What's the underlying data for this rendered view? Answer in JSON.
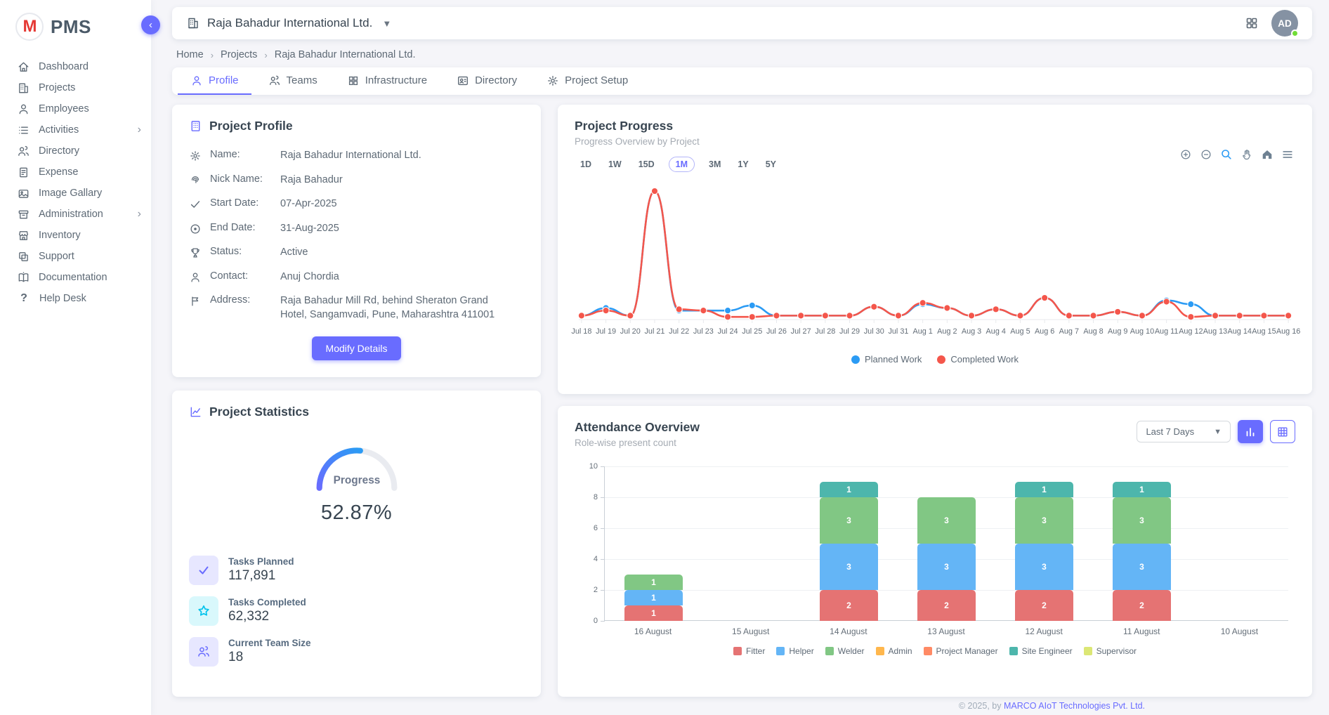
{
  "theme": {
    "accent": "#696cff",
    "online": "#71dd37",
    "logo_red": "#e53935",
    "avatar_bg": "#8592a3"
  },
  "app": {
    "name": "PMS",
    "logo_letter": "M"
  },
  "sidebar": {
    "items": [
      {
        "label": "Dashboard",
        "icon": "home-icon"
      },
      {
        "label": "Projects",
        "icon": "building-icon"
      },
      {
        "label": "Employees",
        "icon": "user-icon"
      },
      {
        "label": "Activities",
        "icon": "list-icon",
        "expandable": true
      },
      {
        "label": "Directory",
        "icon": "users-icon"
      },
      {
        "label": "Expense",
        "icon": "receipt-icon"
      },
      {
        "label": "Image Gallary",
        "icon": "image-icon"
      },
      {
        "label": "Administration",
        "icon": "archive-icon",
        "expandable": true
      },
      {
        "label": "Inventory",
        "icon": "store-icon"
      },
      {
        "label": "Support",
        "icon": "copy-icon"
      },
      {
        "label": "Documentation",
        "icon": "book-icon"
      },
      {
        "label": "Help Desk",
        "icon": "help-icon"
      }
    ],
    "chevron": "›"
  },
  "header": {
    "company": "Raja Bahadur International Ltd.",
    "avatar_initials": "AD"
  },
  "breadcrumb": [
    "Home",
    "Projects",
    "Raja Bahadur International Ltd."
  ],
  "tabs": [
    {
      "label": "Profile",
      "active": true
    },
    {
      "label": "Teams"
    },
    {
      "label": "Infrastructure"
    },
    {
      "label": "Directory"
    },
    {
      "label": "Project Setup"
    }
  ],
  "profile_card": {
    "title": "Project Profile",
    "fields": [
      {
        "label": "Name:",
        "value": "Raja Bahadur International Ltd."
      },
      {
        "label": "Nick Name:",
        "value": "Raja Bahadur"
      },
      {
        "label": "Start Date:",
        "value": "07-Apr-2025"
      },
      {
        "label": "End Date:",
        "value": "31-Aug-2025"
      },
      {
        "label": "Status:",
        "value": "Active"
      },
      {
        "label": "Contact:",
        "value": "Anuj Chordia"
      },
      {
        "label": "Address:",
        "value": "Raja Bahadur Mill Rd, behind Sheraton Grand Hotel, Sangamvadi, Pune, Maharashtra 411001"
      }
    ],
    "button_label": "Modify Details"
  },
  "stats_card": {
    "title": "Project Statistics",
    "gauge_label": "Progress",
    "gauge_value": "52.87%",
    "gauge_percent": 52.87,
    "items": [
      {
        "label": "Tasks Planned",
        "value": "117,891"
      },
      {
        "label": "Tasks Completed",
        "value": "62,332"
      },
      {
        "label": "Current Team Size",
        "value": "18"
      }
    ]
  },
  "progress_card": {
    "title": "Project Progress",
    "subtitle": "Progress Overview by Project",
    "ranges": [
      "1D",
      "1W",
      "15D",
      "1M",
      "3M",
      "1Y",
      "5Y"
    ],
    "active_range": "1M"
  },
  "attendance_card": {
    "title": "Attendance Overview",
    "subtitle": "Role-wise present count",
    "filter_value": "Last 7 Days"
  },
  "footer": {
    "prefix": "© 2025, by ",
    "link": "MARCO AIoT Technologies Pvt. Ltd."
  },
  "chart_data": [
    {
      "type": "line",
      "title": "Project Progress",
      "x": [
        "Jul 18",
        "Jul 19",
        "Jul 20",
        "Jul 21",
        "Jul 22",
        "Jul 23",
        "Jul 24",
        "Jul 25",
        "Jul 26",
        "Jul 27",
        "Jul 28",
        "Jul 29",
        "Jul 30",
        "Jul 31",
        "Aug 1",
        "Aug 2",
        "Aug 3",
        "Aug 4",
        "Aug 5",
        "Aug 6",
        "Aug 7",
        "Aug 8",
        "Aug 9",
        "Aug 10",
        "Aug 11",
        "Aug 12",
        "Aug 13",
        "Aug 14",
        "Aug 15",
        "Aug 16"
      ],
      "series": [
        {
          "name": "Planned Work",
          "color": "#2b9bf4",
          "values": [
            2,
            8,
            2,
            100,
            6,
            6,
            6,
            10,
            2,
            2,
            2,
            2,
            9,
            2,
            11,
            8,
            2,
            7,
            2,
            16,
            2,
            2,
            5,
            2,
            14,
            11,
            2,
            2,
            2,
            2
          ]
        },
        {
          "name": "Completed Work",
          "color": "#f4564b",
          "values": [
            2,
            6,
            2,
            100,
            7,
            6,
            1,
            1,
            2,
            2,
            2,
            2,
            9,
            2,
            12,
            8,
            2,
            7,
            2,
            16,
            2,
            2,
            5,
            2,
            13,
            1,
            2,
            2,
            2,
            2
          ]
        }
      ],
      "ylim": [
        0,
        105
      ],
      "grid": false,
      "legend_position": "bottom"
    },
    {
      "type": "bar",
      "stacked": true,
      "title": "Attendance Overview",
      "categories": [
        "16 August",
        "15 August",
        "14 August",
        "13 August",
        "12 August",
        "11 August",
        "10 August"
      ],
      "series": [
        {
          "name": "Fitter",
          "color": "#e57373",
          "values": [
            1,
            0,
            2,
            2,
            2,
            2,
            0
          ]
        },
        {
          "name": "Helper",
          "color": "#64b5f6",
          "values": [
            1,
            0,
            3,
            3,
            3,
            3,
            0
          ]
        },
        {
          "name": "Welder",
          "color": "#81c784",
          "values": [
            1,
            0,
            3,
            3,
            3,
            3,
            0
          ]
        },
        {
          "name": "Admin",
          "color": "#ffb74d",
          "values": [
            0,
            0,
            0,
            0,
            0,
            0,
            0
          ]
        },
        {
          "name": "Project Manager",
          "color": "#ff8a65",
          "values": [
            0,
            0,
            0,
            0,
            0,
            0,
            0
          ]
        },
        {
          "name": "Site Engineer",
          "color": "#4db6ac",
          "values": [
            0,
            0,
            1,
            0,
            1,
            1,
            0
          ]
        },
        {
          "name": "Supervisor",
          "color": "#dce775",
          "values": [
            0,
            0,
            0,
            0,
            0,
            0,
            0
          ]
        }
      ],
      "ylim": [
        0,
        10
      ],
      "yticks": [
        0,
        2,
        4,
        6,
        8,
        10
      ],
      "grid": true,
      "legend_position": "bottom"
    }
  ]
}
